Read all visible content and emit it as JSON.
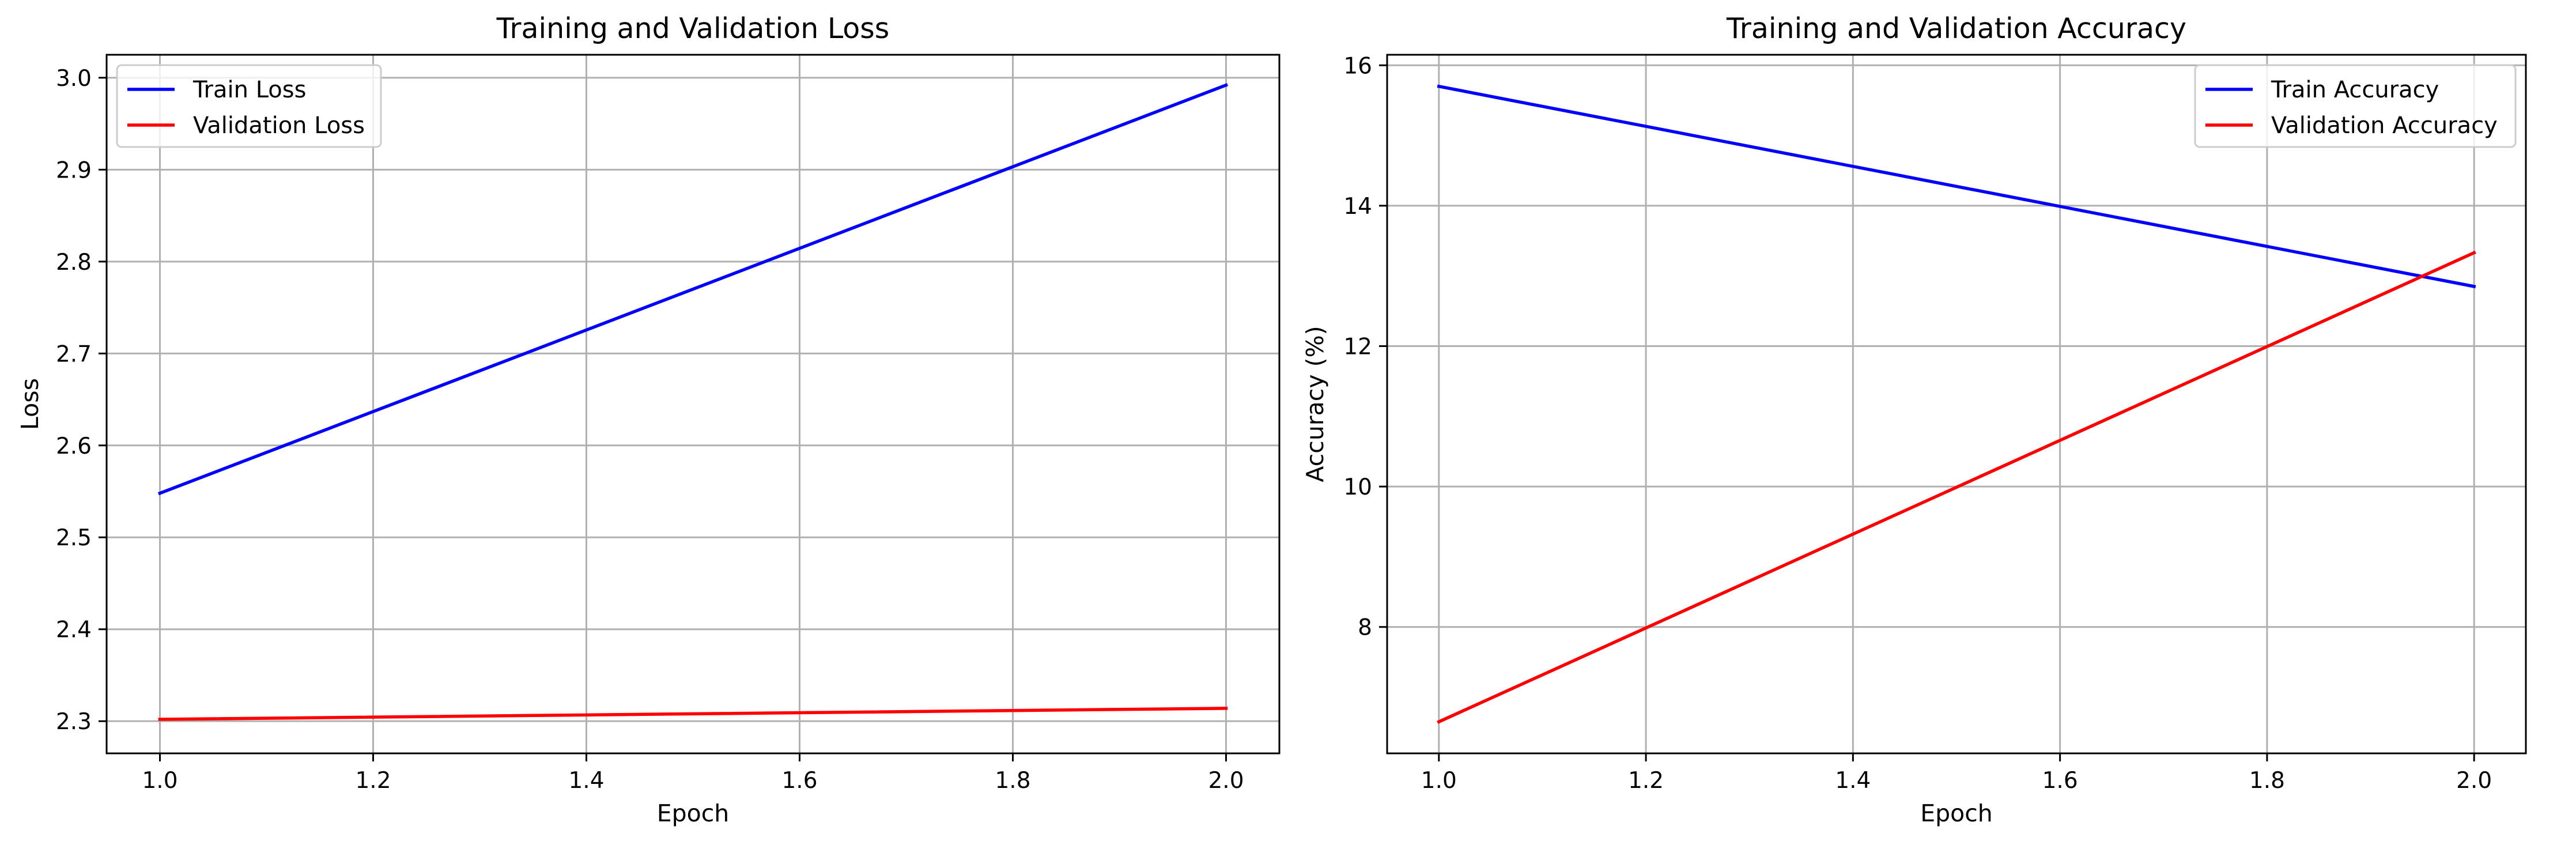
{
  "chart_data": [
    {
      "type": "line",
      "title": "Training and Validation Loss",
      "xlabel": "Epoch",
      "ylabel": "Loss",
      "xlim": [
        0.95,
        2.05
      ],
      "ylim": [
        2.265,
        3.025
      ],
      "xticks": [
        1.0,
        1.2,
        1.4,
        1.6,
        1.8,
        2.0
      ],
      "yticks": [
        2.3,
        2.4,
        2.5,
        2.6,
        2.7,
        2.8,
        2.9,
        3.0
      ],
      "xtick_labels": [
        "1.0",
        "1.2",
        "1.4",
        "1.6",
        "1.8",
        "2.0"
      ],
      "ytick_labels": [
        "2.3",
        "2.4",
        "2.5",
        "2.6",
        "2.7",
        "2.8",
        "2.9",
        "3.0"
      ],
      "grid": true,
      "legend_position": "top-left",
      "x": [
        1,
        2
      ],
      "series": [
        {
          "name": "Train Loss",
          "color": "#0000ff",
          "values": [
            2.548,
            2.992
          ]
        },
        {
          "name": "Validation Loss",
          "color": "#ff0000",
          "values": [
            2.302,
            2.314
          ]
        }
      ]
    },
    {
      "type": "line",
      "title": "Training and Validation Accuracy",
      "xlabel": "Epoch",
      "ylabel": "Accuracy (%)",
      "xlim": [
        0.95,
        2.05
      ],
      "ylim": [
        6.2,
        16.15
      ],
      "xticks": [
        1.0,
        1.2,
        1.4,
        1.6,
        1.8,
        2.0
      ],
      "yticks": [
        8,
        10,
        12,
        14,
        16
      ],
      "xtick_labels": [
        "1.0",
        "1.2",
        "1.4",
        "1.6",
        "1.8",
        "2.0"
      ],
      "ytick_labels": [
        "8",
        "10",
        "12",
        "14",
        "16"
      ],
      "grid": true,
      "legend_position": "top-right",
      "x": [
        1,
        2
      ],
      "series": [
        {
          "name": "Train Accuracy",
          "color": "#0000ff",
          "values": [
            15.7,
            12.85
          ]
        },
        {
          "name": "Validation Accuracy",
          "color": "#ff0000",
          "values": [
            6.65,
            13.33
          ]
        }
      ]
    }
  ]
}
